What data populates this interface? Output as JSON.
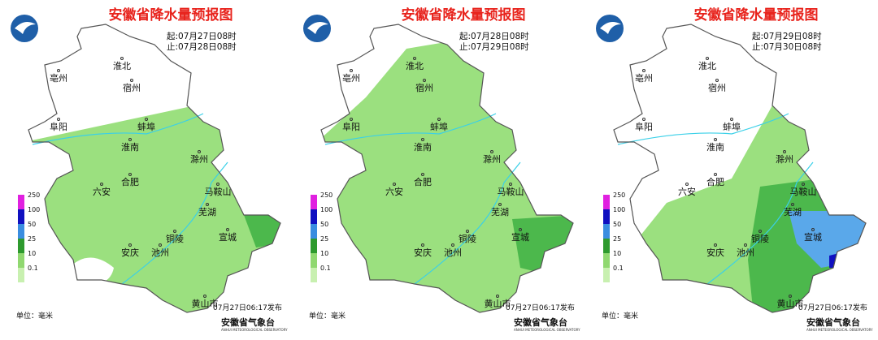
{
  "panels": [
    {
      "title": "安徽省降水量预报图",
      "start": "起:07月27日08时",
      "end": "止:07月28日08时",
      "publish": "07月27日06:17发布",
      "org": "安徽省气象台",
      "org_en": "ANHUI METEOROLOGICAL OBSERVATORY"
    },
    {
      "title": "安徽省降水量预报图",
      "start": "起:07月28日08时",
      "end": "止:07月29日08时",
      "publish": "07月27日06:17发布",
      "org": "安徽省气象台",
      "org_en": "ANHUI METEOROLOGICAL OBSERVATORY"
    },
    {
      "title": "安徽省降水量预报图",
      "start": "起:07月29日08时",
      "end": "止:07月30日08时",
      "publish": "07月27日06:17发布",
      "org": "安徽省气象台",
      "org_en": "ANHUI METEOROLOGICAL OBSERVATORY"
    }
  ],
  "cities": [
    "淮北",
    "亳州",
    "宿州",
    "阜阳",
    "蚌埠",
    "淮南",
    "滁州",
    "合肥",
    "六安",
    "马鞍山",
    "芜湖",
    "铜陵",
    "宣城",
    "安庆",
    "池州",
    "黄山市"
  ],
  "legend": [
    "250",
    "100",
    "50",
    "25",
    "10",
    "0.1"
  ],
  "unit": "单位：毫米"
}
